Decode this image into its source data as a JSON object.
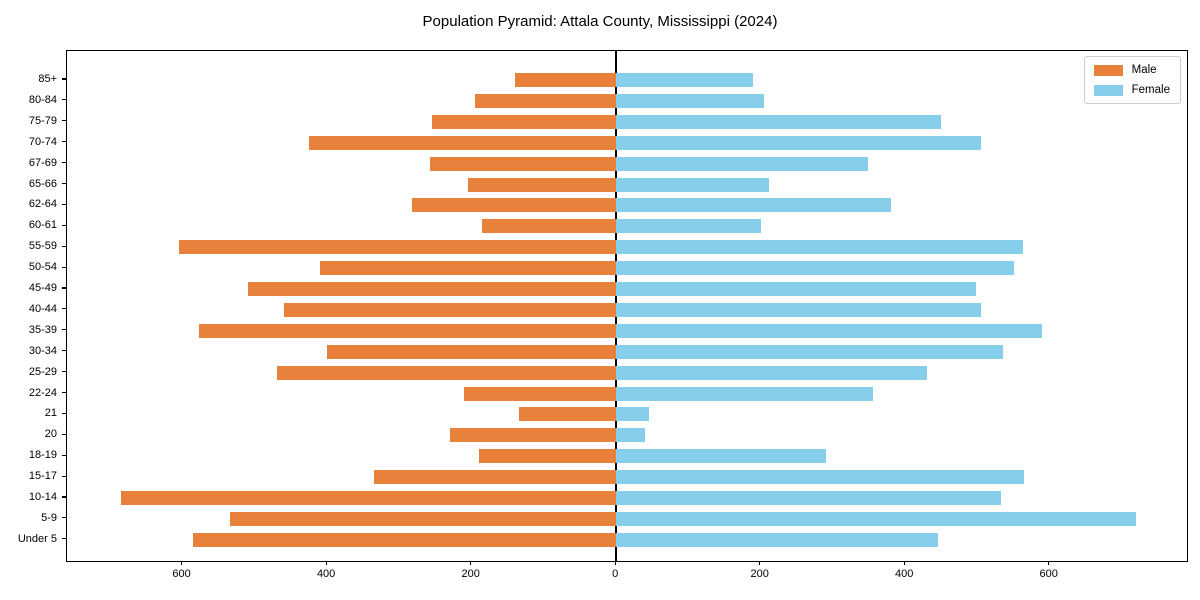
{
  "title": "Population Pyramid: Attala County, Mississippi (2024)",
  "colors": {
    "male": "#E8813C",
    "female": "#87CEEB",
    "axis": "#000000",
    "legend_border": "#cccccc",
    "background": "#ffffff"
  },
  "legend": {
    "position": "upper right",
    "male_label": "Male",
    "female_label": "Female"
  },
  "chart_data": {
    "type": "bar",
    "subtype": "population-pyramid",
    "orientation": "horizontal",
    "title": "Population Pyramid: Attala County, Mississippi (2024)",
    "xlabel": "",
    "ylabel": "",
    "grid": false,
    "xlim": [
      -760,
      790
    ],
    "x_tick_values": [
      -600,
      -400,
      -200,
      0,
      200,
      400,
      600
    ],
    "x_tick_labels": [
      "600",
      "400",
      "200",
      "0",
      "200",
      "400",
      "600"
    ],
    "categories_top_to_bottom": [
      "85+",
      "80-84",
      "75-79",
      "70-74",
      "67-69",
      "65-66",
      "62-64",
      "60-61",
      "55-59",
      "50-54",
      "45-49",
      "40-44",
      "35-39",
      "30-34",
      "25-29",
      "22-24",
      "21",
      "20",
      "18-19",
      "15-17",
      "10-14",
      "5-9",
      "Under 5"
    ],
    "series": [
      {
        "name": "Male",
        "side": "left",
        "color": "#E8813C",
        "values": [
          140,
          195,
          255,
          425,
          258,
          205,
          283,
          185,
          605,
          410,
          510,
          460,
          578,
          400,
          470,
          210,
          135,
          230,
          190,
          335,
          685,
          535,
          585
        ]
      },
      {
        "name": "Female",
        "side": "right",
        "color": "#87CEEB",
        "values": [
          190,
          205,
          450,
          505,
          348,
          212,
          380,
          200,
          563,
          550,
          498,
          505,
          590,
          535,
          430,
          355,
          45,
          40,
          290,
          565,
          533,
          720,
          445
        ]
      }
    ]
  }
}
